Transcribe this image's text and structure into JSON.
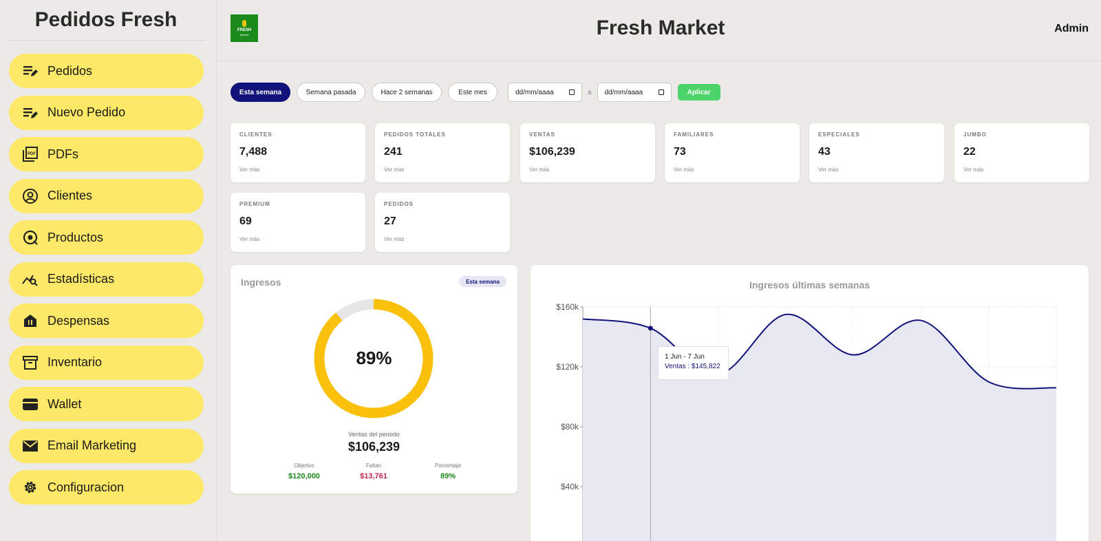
{
  "sidebar": {
    "brand": "Pedidos Fresh",
    "items": [
      {
        "label": "Pedidos",
        "icon": "edit-list-icon"
      },
      {
        "label": "Nuevo Pedido",
        "icon": "edit-list-icon"
      },
      {
        "label": "PDFs",
        "icon": "pdf-icon"
      },
      {
        "label": "Clientes",
        "icon": "user-circle-icon"
      },
      {
        "label": "Productos",
        "icon": "product-icon"
      },
      {
        "label": "Estadísticas",
        "icon": "stats-search-icon"
      },
      {
        "label": "Despensas",
        "icon": "pantry-icon"
      },
      {
        "label": "Inventario",
        "icon": "archive-icon"
      },
      {
        "label": "Wallet",
        "icon": "wallet-icon"
      },
      {
        "label": "Email Marketing",
        "icon": "mail-icon"
      },
      {
        "label": "Configuracion",
        "icon": "gear-icon"
      }
    ]
  },
  "header": {
    "title": "Fresh Market",
    "user": "Admin",
    "logo_line1": "FRESH",
    "logo_line2": "Market"
  },
  "filters": {
    "pills": [
      "Esta semana",
      "Semana pasada",
      "Hace 2 semanas",
      "Este mes"
    ],
    "active_pill": "Esta semana",
    "date_from_placeholder": "dd/mm/aaaa",
    "date_to_placeholder": "dd/mm/aaaa",
    "date_separator": "a",
    "apply_label": "Aplicar"
  },
  "stats": [
    {
      "label": "CLIENTES",
      "value": "7,488",
      "more": "Ver más"
    },
    {
      "label": "PEDIDOS TOTALES",
      "value": "241",
      "more": "Ver más"
    },
    {
      "label": "VENTAS",
      "value": "$106,239",
      "more": "Ver más"
    },
    {
      "label": "FAMILIARES",
      "value": "73",
      "more": "Ver más"
    },
    {
      "label": "ESPECIALES",
      "value": "43",
      "more": "Ver más"
    },
    {
      "label": "JUMBO",
      "value": "22",
      "more": "Ver más"
    },
    {
      "label": "PREMIUM",
      "value": "69",
      "more": "Ver más"
    },
    {
      "label": "PEDIDOS",
      "value": "27",
      "more": "Ver más"
    }
  ],
  "ingresos": {
    "title": "Ingresos",
    "badge": "Esta semana",
    "progress_percent": 89,
    "progress_label": "89%",
    "sales_label": "Ventas del periodo",
    "sales_value": "$106,239",
    "metrics": [
      {
        "label": "Objetivo",
        "value": "$120,000",
        "color": "#1a8a1a"
      },
      {
        "label": "Faltan",
        "value": "$13,761",
        "color": "#c0254a"
      },
      {
        "label": "Porcentaje",
        "value": "89%",
        "color": "#1a8a1a"
      }
    ],
    "colors": {
      "progress": "#f9c10a",
      "track": "#e6e6e6"
    }
  },
  "chart_data": {
    "type": "area",
    "title": "Ingresos últimas semanas",
    "y_ticks": [
      "$160k",
      "$120k",
      "$80k",
      "$40k"
    ],
    "ylim": [
      0,
      160000
    ],
    "values": [
      152000,
      145822,
      115000,
      155000,
      128000,
      151000,
      110000,
      106000
    ],
    "grid": true,
    "line_color": "#11137a",
    "fill_color": "#e8e8f3",
    "tooltip": {
      "period": "1 Jun - 7 Jun",
      "label": "Ventas : $145,822",
      "index": 1
    }
  }
}
